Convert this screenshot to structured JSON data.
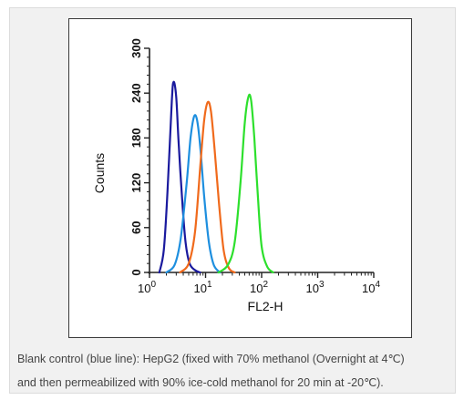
{
  "caption": {
    "line1": "Blank control (blue line): HepG2 (fixed with 70% methanol (Overnight at 4℃)",
    "line2": "and then permeabilized with 90% ice-cold methanol for 20 min at -20℃)."
  },
  "chart_data": {
    "type": "line",
    "title": "",
    "xlabel": "FL2-H",
    "ylabel": "Counts",
    "x_scale": "log",
    "xlim": [
      1,
      10000
    ],
    "ylim": [
      0,
      300
    ],
    "x_ticks": [
      {
        "base": "10",
        "exp": "0",
        "value": 1
      },
      {
        "base": "10",
        "exp": "1",
        "value": 10
      },
      {
        "base": "10",
        "exp": "2",
        "value": 100
      },
      {
        "base": "10",
        "exp": "3",
        "value": 1000
      },
      {
        "base": "10",
        "exp": "4",
        "value": 10000
      }
    ],
    "y_ticks": [
      {
        "label": "0",
        "value": 0
      },
      {
        "label": "60",
        "value": 60
      },
      {
        "label": "120",
        "value": 120
      },
      {
        "label": "180",
        "value": 180
      },
      {
        "label": "240",
        "value": 240
      },
      {
        "label": "300",
        "value": 300
      }
    ],
    "grid": false,
    "legend": "none",
    "series": [
      {
        "color": "#1a1a9e",
        "x": [
          1.5,
          1.8,
          2.1,
          2.5,
          2.7,
          3.0,
          3.3,
          3.8,
          4.4,
          5.2,
          6.5,
          8.0
        ],
        "y": [
          0,
          30,
          110,
          230,
          255,
          235,
          175,
          100,
          40,
          12,
          3,
          0
        ]
      },
      {
        "color": "#1e8fdf",
        "x": [
          2.0,
          2.8,
          3.6,
          4.6,
          5.4,
          6.2,
          7.0,
          8.0,
          9.5,
          11.5,
          14.0,
          18.0
        ],
        "y": [
          0,
          10,
          45,
          120,
          180,
          208,
          205,
          170,
          100,
          40,
          10,
          0
        ]
      },
      {
        "color": "#f06a1c",
        "x": [
          3.5,
          5.0,
          6.5,
          8.2,
          9.5,
          11.0,
          12.5,
          14.5,
          17.5,
          21.0,
          26.0,
          33.0
        ],
        "y": [
          0,
          12,
          55,
          150,
          205,
          228,
          215,
          165,
          90,
          30,
          6,
          0
        ]
      },
      {
        "color": "#2de02d",
        "x": [
          17.0,
          25.0,
          33.0,
          42.0,
          50.0,
          58.0,
          65.0,
          74.0,
          86.0,
          100.0,
          125.0,
          160.0
        ],
        "y": [
          0,
          10,
          40,
          120,
          200,
          235,
          230,
          180,
          100,
          35,
          8,
          0
        ]
      }
    ]
  }
}
